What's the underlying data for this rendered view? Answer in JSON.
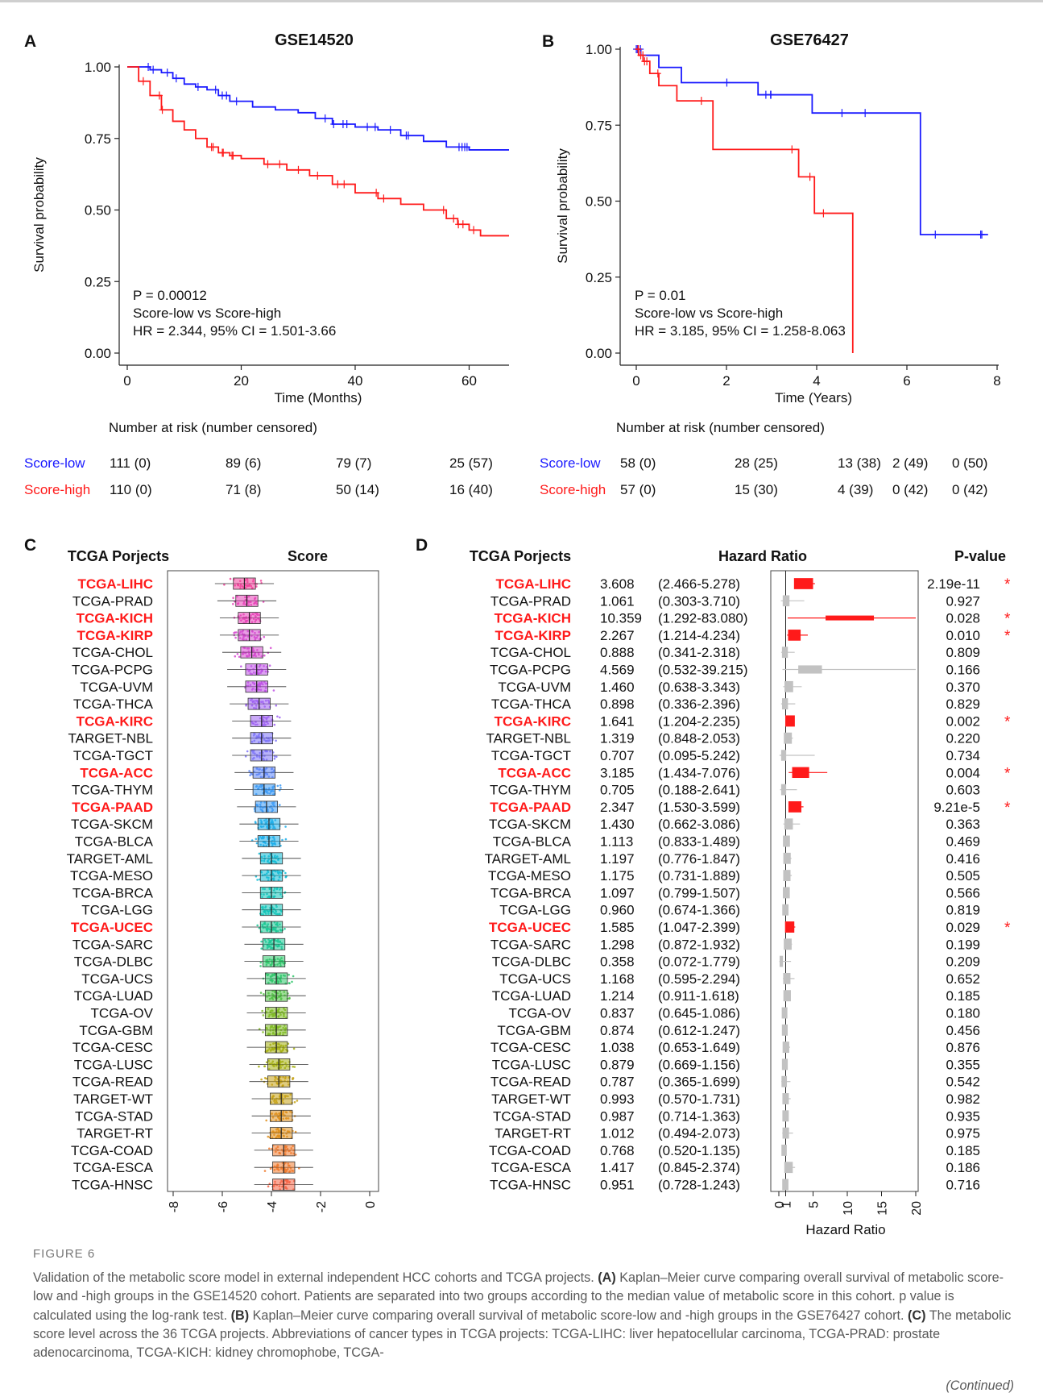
{
  "chart_data": [
    {
      "panel": "A",
      "type": "line",
      "title": "GSE14520",
      "xlabel": "Time (Months)",
      "ylabel": "Survival probability",
      "xlim": [
        0,
        67
      ],
      "ylim": [
        0,
        1
      ],
      "xticks": [
        "0",
        "20",
        "40",
        "60"
      ],
      "yticks": [
        "0.00",
        "0.25",
        "0.50",
        "0.75",
        "1.00"
      ],
      "colors": {
        "Score-low": "#1a1aff",
        "Score-high": "#ff1a1a"
      },
      "annotation": [
        "P = 0.00012",
        "Score-low vs Score-high",
        "HR = 2.344, 95% CI = 1.501-3.66"
      ],
      "series": [
        {
          "name": "Score-low",
          "color": "#1a1aff",
          "x": [
            0,
            4,
            6,
            8,
            10,
            12,
            14,
            16,
            18,
            22,
            26,
            30,
            33,
            36,
            40,
            44,
            48,
            52,
            56,
            60,
            67
          ],
          "y": [
            1.0,
            0.99,
            0.98,
            0.96,
            0.94,
            0.93,
            0.92,
            0.9,
            0.88,
            0.86,
            0.85,
            0.84,
            0.82,
            0.8,
            0.79,
            0.78,
            0.76,
            0.74,
            0.72,
            0.71,
            0.71
          ]
        },
        {
          "name": "Score-high",
          "color": "#ff1a1a",
          "x": [
            0,
            2,
            4,
            6,
            8,
            10,
            12,
            14,
            16,
            18,
            20,
            24,
            28,
            32,
            36,
            40,
            44,
            48,
            52,
            56,
            58,
            60,
            62,
            67
          ],
          "y": [
            1.0,
            0.95,
            0.9,
            0.85,
            0.81,
            0.78,
            0.75,
            0.72,
            0.7,
            0.69,
            0.68,
            0.66,
            0.64,
            0.62,
            0.59,
            0.56,
            0.54,
            0.52,
            0.5,
            0.47,
            0.45,
            0.43,
            0.41,
            0.41
          ]
        }
      ],
      "risk_table": {
        "title": "Number at risk (number censored)",
        "times": [
          "0",
          "20",
          "40",
          "60"
        ],
        "rows": [
          {
            "name": "Score-low",
            "values": [
              "111 (0)",
              "89 (6)",
              "79 (7)",
              "25 (57)"
            ]
          },
          {
            "name": "Score-high",
            "values": [
              "110 (0)",
              "71 (8)",
              "50 (14)",
              "16 (40)"
            ]
          }
        ]
      }
    },
    {
      "panel": "B",
      "type": "line",
      "title": "GSE76427",
      "xlabel": "Time (Years)",
      "ylabel": "Survival probability",
      "xlim": [
        0,
        8
      ],
      "ylim": [
        0,
        1
      ],
      "xticks": [
        "0",
        "2",
        "4",
        "6",
        "8"
      ],
      "yticks": [
        "0.00",
        "0.25",
        "0.50",
        "0.75",
        "1.00"
      ],
      "annotation": [
        "P = 0.01",
        "Score-low vs Score-high",
        "HR = 3.185, 95% CI = 1.258-8.063"
      ],
      "series": [
        {
          "name": "Score-low",
          "color": "#1a1aff",
          "x": [
            0,
            0.1,
            0.5,
            1.0,
            2.7,
            3.9,
            6.3,
            7.8
          ],
          "y": [
            1.0,
            0.98,
            0.94,
            0.89,
            0.85,
            0.79,
            0.39,
            0.39
          ]
        },
        {
          "name": "Score-high",
          "color": "#ff1a1a",
          "x": [
            0,
            0.05,
            0.15,
            0.3,
            0.5,
            0.9,
            1.7,
            3.6,
            3.95,
            4.8,
            4.8
          ],
          "y": [
            1.0,
            0.98,
            0.96,
            0.92,
            0.88,
            0.83,
            0.67,
            0.58,
            0.46,
            0.46,
            0.0
          ]
        }
      ],
      "risk_table": {
        "title": "Number at risk (number censored)",
        "times": [
          "0",
          "2",
          "4",
          "6",
          "8"
        ],
        "rows": [
          {
            "name": "Score-low",
            "values": [
              "58 (0)",
              "28 (25)",
              "13 (38)",
              "2 (49)",
              "0 (50)"
            ]
          },
          {
            "name": "Score-high",
            "values": [
              "57 (0)",
              "15 (30)",
              "4 (39)",
              "0 (42)",
              "0 (42)"
            ]
          }
        ]
      }
    },
    {
      "panel": "C",
      "type": "scatter",
      "column_header": "TCGA Porjects",
      "title": "Score",
      "xlim": [
        -8,
        0
      ],
      "xticks": [
        "-8",
        "-6",
        "-4",
        "-2",
        "0"
      ],
      "projects": [
        "TCGA-LIHC",
        "TCGA-PRAD",
        "TCGA-KICH",
        "TCGA-KIRP",
        "TCGA-CHOL",
        "TCGA-PCPG",
        "TCGA-UVM",
        "TCGA-THCA",
        "TCGA-KIRC",
        "TARGET-NBL",
        "TCGA-TGCT",
        "TCGA-ACC",
        "TCGA-THYM",
        "TCGA-PAAD",
        "TCGA-SKCM",
        "TCGA-BLCA",
        "TARGET-AML",
        "TCGA-MESO",
        "TCGA-BRCA",
        "TCGA-LGG",
        "TCGA-UCEC",
        "TCGA-SARC",
        "TCGA-DLBC",
        "TCGA-UCS",
        "TCGA-LUAD",
        "TCGA-OV",
        "TCGA-GBM",
        "TCGA-CESC",
        "TCGA-LUSC",
        "TCGA-READ",
        "TARGET-WT",
        "TCGA-STAD",
        "TARGET-RT",
        "TCGA-COAD",
        "TCGA-ESCA",
        "TCGA-HNSC"
      ],
      "highlighted": [
        "TCGA-LIHC",
        "TCGA-KICH",
        "TCGA-KIRP",
        "TCGA-KIRC",
        "TCGA-ACC",
        "TCGA-PAAD",
        "TCGA-UCEC"
      ],
      "medians": [
        -5.1,
        -5.0,
        -4.9,
        -4.9,
        -4.8,
        -4.6,
        -4.6,
        -4.5,
        -4.4,
        -4.4,
        -4.4,
        -4.3,
        -4.3,
        -4.2,
        -4.1,
        -4.1,
        -4.0,
        -4.0,
        -4.0,
        -4.0,
        -4.0,
        -3.9,
        -3.9,
        -3.8,
        -3.8,
        -3.8,
        -3.8,
        -3.8,
        -3.7,
        -3.7,
        -3.6,
        -3.6,
        -3.6,
        -3.5,
        -3.5,
        -3.5
      ]
    },
    {
      "panel": "D",
      "type": "table",
      "column_headers": [
        "TCGA Porjects",
        "Hazard Ratio",
        "P-value"
      ],
      "xlabel": "Hazard Ratio",
      "xticks": [
        "0",
        "1",
        "5",
        "10",
        "15",
        "20"
      ],
      "xlim": [
        0,
        20
      ],
      "significance_marker": "*",
      "rows": [
        {
          "project": "TCGA-LIHC",
          "hr": 3.608,
          "ci_text": "(2.466-5.278)",
          "lo": 2.466,
          "hi": 5.278,
          "p": "2.19e-11",
          "sig": true
        },
        {
          "project": "TCGA-PRAD",
          "hr": 1.061,
          "ci_text": "(0.303-3.710)",
          "lo": 0.303,
          "hi": 3.71,
          "p": "0.927",
          "sig": false
        },
        {
          "project": "TCGA-KICH",
          "hr": 10.359,
          "ci_text": "(1.292-83.080)",
          "lo": 1.292,
          "hi": 83.08,
          "p": "0.028",
          "sig": true
        },
        {
          "project": "TCGA-KIRP",
          "hr": 2.267,
          "ci_text": "(1.214-4.234)",
          "lo": 1.214,
          "hi": 4.234,
          "p": "0.010",
          "sig": true
        },
        {
          "project": "TCGA-CHOL",
          "hr": 0.888,
          "ci_text": "(0.341-2.318)",
          "lo": 0.341,
          "hi": 2.318,
          "p": "0.809",
          "sig": false
        },
        {
          "project": "TCGA-PCPG",
          "hr": 4.569,
          "ci_text": "(0.532-39.215)",
          "lo": 0.532,
          "hi": 39.215,
          "p": "0.166",
          "sig": false
        },
        {
          "project": "TCGA-UVM",
          "hr": 1.46,
          "ci_text": "(0.638-3.343)",
          "lo": 0.638,
          "hi": 3.343,
          "p": "0.370",
          "sig": false
        },
        {
          "project": "TCGA-THCA",
          "hr": 0.898,
          "ci_text": "(0.336-2.396)",
          "lo": 0.336,
          "hi": 2.396,
          "p": "0.829",
          "sig": false
        },
        {
          "project": "TCGA-KIRC",
          "hr": 1.641,
          "ci_text": "(1.204-2.235)",
          "lo": 1.204,
          "hi": 2.235,
          "p": "0.002",
          "sig": true
        },
        {
          "project": "TARGET-NBL",
          "hr": 1.319,
          "ci_text": "(0.848-2.053)",
          "lo": 0.848,
          "hi": 2.053,
          "p": "0.220",
          "sig": false
        },
        {
          "project": "TCGA-TGCT",
          "hr": 0.707,
          "ci_text": "(0.095-5.242)",
          "lo": 0.095,
          "hi": 5.242,
          "p": "0.734",
          "sig": false
        },
        {
          "project": "TCGA-ACC",
          "hr": 3.185,
          "ci_text": "(1.434-7.076)",
          "lo": 1.434,
          "hi": 7.076,
          "p": "0.004",
          "sig": true
        },
        {
          "project": "TCGA-THYM",
          "hr": 0.705,
          "ci_text": "(0.188-2.641)",
          "lo": 0.188,
          "hi": 2.641,
          "p": "0.603",
          "sig": false
        },
        {
          "project": "TCGA-PAAD",
          "hr": 2.347,
          "ci_text": "(1.530-3.599)",
          "lo": 1.53,
          "hi": 3.599,
          "p": "9.21e-5",
          "sig": true
        },
        {
          "project": "TCGA-SKCM",
          "hr": 1.43,
          "ci_text": "(0.662-3.086)",
          "lo": 0.662,
          "hi": 3.086,
          "p": "0.363",
          "sig": false
        },
        {
          "project": "TCGA-BLCA",
          "hr": 1.113,
          "ci_text": "(0.833-1.489)",
          "lo": 0.833,
          "hi": 1.489,
          "p": "0.469",
          "sig": false
        },
        {
          "project": "TARGET-AML",
          "hr": 1.197,
          "ci_text": "(0.776-1.847)",
          "lo": 0.776,
          "hi": 1.847,
          "p": "0.416",
          "sig": false
        },
        {
          "project": "TCGA-MESO",
          "hr": 1.175,
          "ci_text": "(0.731-1.889)",
          "lo": 0.731,
          "hi": 1.889,
          "p": "0.505",
          "sig": false
        },
        {
          "project": "TCGA-BRCA",
          "hr": 1.097,
          "ci_text": "(0.799-1.507)",
          "lo": 0.799,
          "hi": 1.507,
          "p": "0.566",
          "sig": false
        },
        {
          "project": "TCGA-LGG",
          "hr": 0.96,
          "ci_text": "(0.674-1.366)",
          "lo": 0.674,
          "hi": 1.366,
          "p": "0.819",
          "sig": false
        },
        {
          "project": "TCGA-UCEC",
          "hr": 1.585,
          "ci_text": "(1.047-2.399)",
          "lo": 1.047,
          "hi": 2.399,
          "p": "0.029",
          "sig": true
        },
        {
          "project": "TCGA-SARC",
          "hr": 1.298,
          "ci_text": "(0.872-1.932)",
          "lo": 0.872,
          "hi": 1.932,
          "p": "0.199",
          "sig": false
        },
        {
          "project": "TCGA-DLBC",
          "hr": 0.358,
          "ci_text": "(0.072-1.779)",
          "lo": 0.072,
          "hi": 1.779,
          "p": "0.209",
          "sig": false
        },
        {
          "project": "TCGA-UCS",
          "hr": 1.168,
          "ci_text": "(0.595-2.294)",
          "lo": 0.595,
          "hi": 2.294,
          "p": "0.652",
          "sig": false
        },
        {
          "project": "TCGA-LUAD",
          "hr": 1.214,
          "ci_text": "(0.911-1.618)",
          "lo": 0.911,
          "hi": 1.618,
          "p": "0.185",
          "sig": false
        },
        {
          "project": "TCGA-OV",
          "hr": 0.837,
          "ci_text": "(0.645-1.086)",
          "lo": 0.645,
          "hi": 1.086,
          "p": "0.180",
          "sig": false
        },
        {
          "project": "TCGA-GBM",
          "hr": 0.874,
          "ci_text": "(0.612-1.247)",
          "lo": 0.612,
          "hi": 1.247,
          "p": "0.456",
          "sig": false
        },
        {
          "project": "TCGA-CESC",
          "hr": 1.038,
          "ci_text": "(0.653-1.649)",
          "lo": 0.653,
          "hi": 1.649,
          "p": "0.876",
          "sig": false
        },
        {
          "project": "TCGA-LUSC",
          "hr": 0.879,
          "ci_text": "(0.669-1.156)",
          "lo": 0.669,
          "hi": 1.156,
          "p": "0.355",
          "sig": false
        },
        {
          "project": "TCGA-READ",
          "hr": 0.787,
          "ci_text": "(0.365-1.699)",
          "lo": 0.365,
          "hi": 1.699,
          "p": "0.542",
          "sig": false
        },
        {
          "project": "TARGET-WT",
          "hr": 0.993,
          "ci_text": "(0.570-1.731)",
          "lo": 0.57,
          "hi": 1.731,
          "p": "0.982",
          "sig": false
        },
        {
          "project": "TCGA-STAD",
          "hr": 0.987,
          "ci_text": "(0.714-1.363)",
          "lo": 0.714,
          "hi": 1.363,
          "p": "0.935",
          "sig": false
        },
        {
          "project": "TARGET-RT",
          "hr": 1.012,
          "ci_text": "(0.494-2.073)",
          "lo": 0.494,
          "hi": 2.073,
          "p": "0.975",
          "sig": false
        },
        {
          "project": "TCGA-COAD",
          "hr": 0.768,
          "ci_text": "(0.520-1.135)",
          "lo": 0.52,
          "hi": 1.135,
          "p": "0.185",
          "sig": false
        },
        {
          "project": "TCGA-ESCA",
          "hr": 1.417,
          "ci_text": "(0.845-2.374)",
          "lo": 0.845,
          "hi": 2.374,
          "p": "0.186",
          "sig": false
        },
        {
          "project": "TCGA-HNSC",
          "hr": 0.951,
          "ci_text": "(0.728-1.243)",
          "lo": 0.728,
          "hi": 1.243,
          "p": "0.716",
          "sig": false
        }
      ]
    }
  ],
  "caption": {
    "label": "FIGURE 6",
    "intro": "Validation of the metabolic score model in external independent HCC cohorts and TCGA projects. ",
    "a_tag": "(A)",
    "a_text": " Kaplan–Meier curve comparing overall survival of metabolic score-low and -high groups in the GSE14520 cohort. Patients are separated into two groups according to the median value of metabolic score in this cohort. p value is calculated using the log-rank test. ",
    "b_tag": "(B)",
    "b_text": " Kaplan–Meier curve comparing overall survival of metabolic score-low and -high groups in the GSE76427 cohort. ",
    "c_tag": "(C)",
    "c_text": " The metabolic score level across the 36 TCGA projects. Abbreviations of cancer types in TCGA projects: TCGA-LIHC: liver hepatocellular carcinoma, TCGA-PRAD: prostate adenocarcinoma, TCGA-KICH: kidney chromophobe, TCGA-",
    "continued": "(Continued)"
  }
}
